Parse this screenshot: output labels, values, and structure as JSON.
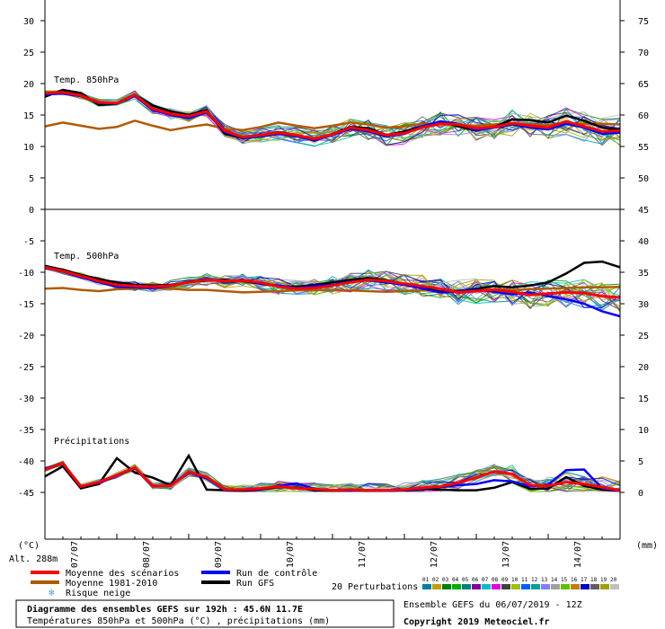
{
  "chart_data": {
    "type": "line",
    "title": "Diagramme des ensembles GEFS sur 192h : 45.6N 11.7E",
    "subtitle": "Températures 850hPa et 500hPa (°C) , précipitations (mm)",
    "run_info": "Ensemble GEFS du 06/07/2019 - 12Z",
    "copyright": "Copyright 2019 Meteociel.fr",
    "left_axis_unit": "(°C)",
    "right_axis_unit": "(mm)",
    "altitude": "Alt. 288m",
    "left_ticks": [
      "30",
      "25",
      "20",
      "15",
      "10",
      "5",
      "0",
      "-5",
      "-10",
      "-15",
      "-20",
      "-25",
      "-30",
      "-35",
      "-40",
      "-45"
    ],
    "left_tick_values": [
      30,
      25,
      20,
      15,
      10,
      5,
      0,
      -5,
      -10,
      -15,
      -20,
      -25,
      -30,
      -35,
      -40,
      -45
    ],
    "right_ticks_top": [
      "75",
      "70",
      "65",
      "60",
      "55",
      "50",
      "45",
      "40",
      "35",
      "30",
      "25",
      "20",
      "15",
      "10",
      "5",
      "0"
    ],
    "ylim": [
      -50,
      32
    ],
    "x_labels": [
      "07/07",
      "08/07",
      "09/07",
      "10/07",
      "11/07",
      "12/07",
      "13/07",
      "14/07"
    ],
    "x_label_positions_h": [
      12,
      36,
      60,
      84,
      108,
      132,
      156,
      180
    ],
    "x_hours": [
      0,
      6,
      12,
      18,
      24,
      30,
      36,
      42,
      48,
      54,
      60,
      66,
      72,
      78,
      84,
      90,
      96,
      102,
      108,
      114,
      120,
      126,
      132,
      138,
      144,
      150,
      156,
      162,
      168,
      174,
      180,
      186,
      192
    ],
    "panel_labels": {
      "t850": "Temp. 850hPa",
      "t500": "Temp. 500hPa",
      "precip": "Précipitations"
    },
    "legend": {
      "mean": "Moyenne des scénarios",
      "control": "Run de contrôle",
      "climo": "Moyenne 1981-2010",
      "gfs": "Run GFS",
      "snow": "Risque neige",
      "perturbations": "20 Perturbations",
      "member_numbers": [
        "01",
        "02",
        "03",
        "04",
        "05",
        "06",
        "07",
        "08",
        "09",
        "10",
        "11",
        "12",
        "13",
        "14",
        "15",
        "16",
        "17",
        "18",
        "19",
        "20"
      ],
      "member_colors": [
        "#0080a0",
        "#c0a000",
        "#008000",
        "#00b000",
        "#008080",
        "#8000a0",
        "#00c0c0",
        "#e000e0",
        "#404040",
        "#a0c000",
        "#0060ff",
        "#00a0a0",
        "#8080ff",
        "#a0a0a0",
        "#60c000",
        "#c08000",
        "#0000c0",
        "#606060",
        "#a0a000",
        "#c0c0c0"
      ]
    },
    "colors": {
      "mean": "#ff0000",
      "control": "#0000ff",
      "climo": "#b05a00",
      "gfs": "#000000",
      "axis": "#000000"
    },
    "series": [
      {
        "name": "Moyenne des scénarios",
        "panel": "t850",
        "values": [
          18.5,
          18.6,
          18.1,
          17.0,
          16.9,
          18.2,
          16.0,
          15.2,
          14.8,
          15.6,
          12.5,
          11.5,
          11.8,
          12.2,
          11.8,
          11.2,
          11.9,
          13.0,
          12.6,
          11.8,
          12.1,
          13.0,
          13.6,
          13.5,
          12.9,
          13.1,
          13.7,
          13.3,
          13.0,
          14.0,
          13.2,
          12.4,
          12.5
        ]
      },
      {
        "name": "Run de contrôle",
        "panel": "t850",
        "values": [
          18.3,
          18.4,
          18.0,
          16.9,
          16.8,
          18.0,
          15.8,
          15.0,
          14.5,
          15.4,
          12.3,
          11.4,
          11.6,
          12.0,
          11.6,
          11.0,
          11.8,
          12.8,
          12.4,
          11.6,
          12.0,
          13.2,
          14.0,
          13.6,
          12.6,
          13.0,
          13.5,
          13.0,
          12.7,
          13.6,
          13.0,
          12.0,
          12.2
        ]
      },
      {
        "name": "Run GFS",
        "panel": "t850",
        "values": [
          17.9,
          19.0,
          18.5,
          16.6,
          16.8,
          18.2,
          16.5,
          15.6,
          15.0,
          15.8,
          12.0,
          11.3,
          11.8,
          12.3,
          11.8,
          10.9,
          12.0,
          13.1,
          12.9,
          11.8,
          12.4,
          13.2,
          13.9,
          13.2,
          12.5,
          13.1,
          14.3,
          14.2,
          13.8,
          14.9,
          14.1,
          13.0,
          12.6
        ]
      },
      {
        "name": "Moyenne 1981-2010",
        "panel": "t850",
        "values": [
          13.2,
          13.8,
          13.3,
          12.8,
          13.1,
          14.1,
          13.3,
          12.6,
          13.1,
          13.5,
          12.8,
          12.6,
          13.1,
          13.8,
          13.3,
          12.9,
          13.3,
          13.8,
          13.5,
          13.0,
          13.2,
          13.6,
          13.6,
          13.4,
          13.3,
          13.5,
          13.7,
          13.5,
          13.4,
          13.6,
          13.6,
          13.6,
          13.5
        ]
      },
      {
        "name": "Moyenne des scénarios",
        "panel": "t500",
        "values": [
          -9.2,
          -9.8,
          -10.6,
          -11.4,
          -12.0,
          -12.2,
          -12.3,
          -12.1,
          -11.6,
          -11.2,
          -11.4,
          -11.3,
          -11.6,
          -12.3,
          -12.6,
          -12.5,
          -12.1,
          -11.6,
          -11.2,
          -11.4,
          -11.8,
          -12.2,
          -12.6,
          -13.2,
          -13.0,
          -12.8,
          -13.1,
          -13.6,
          -13.4,
          -13.2,
          -13.3,
          -13.8,
          -14.0
        ]
      },
      {
        "name": "Run de contrôle",
        "panel": "t500",
        "values": [
          -9.3,
          -9.9,
          -10.8,
          -11.6,
          -12.3,
          -12.4,
          -12.5,
          -12.2,
          -11.6,
          -11.1,
          -11.5,
          -11.2,
          -11.8,
          -12.1,
          -12.5,
          -12.2,
          -12.0,
          -11.5,
          -11.3,
          -11.6,
          -12.0,
          -12.6,
          -13.2,
          -13.0,
          -12.8,
          -13.1,
          -13.5,
          -13.2,
          -13.8,
          -14.3,
          -15.0,
          -16.2,
          -17.0
        ]
      },
      {
        "name": "Run GFS",
        "panel": "t500",
        "values": [
          -9.0,
          -9.6,
          -10.4,
          -11.1,
          -11.6,
          -12.0,
          -12.1,
          -12.0,
          -11.6,
          -11.3,
          -11.2,
          -11.4,
          -11.8,
          -12.2,
          -12.3,
          -12.0,
          -11.6,
          -11.2,
          -10.9,
          -11.3,
          -11.8,
          -12.4,
          -13.1,
          -13.0,
          -12.6,
          -12.2,
          -12.4,
          -12.1,
          -11.6,
          -10.2,
          -8.5,
          -8.3,
          -9.2
        ]
      },
      {
        "name": "Moyenne 1981-2010",
        "panel": "t500",
        "values": [
          -12.6,
          -12.5,
          -12.8,
          -13.0,
          -12.7,
          -12.6,
          -12.5,
          -12.6,
          -12.8,
          -12.8,
          -13.0,
          -13.2,
          -13.1,
          -13.0,
          -12.9,
          -12.8,
          -12.8,
          -12.9,
          -13.0,
          -13.1,
          -13.0,
          -12.9,
          -12.9,
          -12.9,
          -12.8,
          -12.7,
          -12.8,
          -12.7,
          -12.6,
          -12.5,
          -12.4,
          -12.4,
          -12.3
        ]
      },
      {
        "name": "Moyenne des scénarios",
        "panel": "precip",
        "values": [
          3.5,
          4.5,
          0.8,
          1.5,
          2.6,
          3.8,
          0.9,
          0.9,
          3.1,
          2.3,
          0.3,
          0.3,
          0.5,
          0.8,
          0.5,
          0.4,
          0.2,
          0.3,
          0.2,
          0.2,
          0.3,
          0.6,
          0.8,
          1.4,
          2.2,
          3.2,
          2.8,
          1.0,
          0.9,
          1.5,
          1.2,
          0.7,
          0.2
        ]
      },
      {
        "name": "Run de contrôle",
        "panel": "precip",
        "values": [
          3.7,
          4.4,
          0.8,
          1.4,
          2.5,
          3.7,
          0.8,
          0.9,
          3.0,
          2.1,
          0.2,
          0.3,
          0.4,
          0.9,
          1.3,
          0.4,
          0.2,
          0.2,
          0.2,
          0.1,
          0.2,
          0.5,
          0.7,
          1.0,
          1.2,
          1.8,
          1.6,
          0.8,
          1.1,
          3.4,
          3.5,
          0.5,
          0.1
        ]
      },
      {
        "name": "Run GFS",
        "panel": "precip",
        "values": [
          2.4,
          4.0,
          0.5,
          1.2,
          5.3,
          3.0,
          2.2,
          1.0,
          5.7,
          0.3,
          0.2,
          0.1,
          0.4,
          0.7,
          0.6,
          0.2,
          0.1,
          0.2,
          0.1,
          0.1,
          0.2,
          0.4,
          0.3,
          0.2,
          0.2,
          0.6,
          1.5,
          0.4,
          0.5,
          2.3,
          0.9,
          0.3,
          0.1
        ]
      }
    ]
  }
}
